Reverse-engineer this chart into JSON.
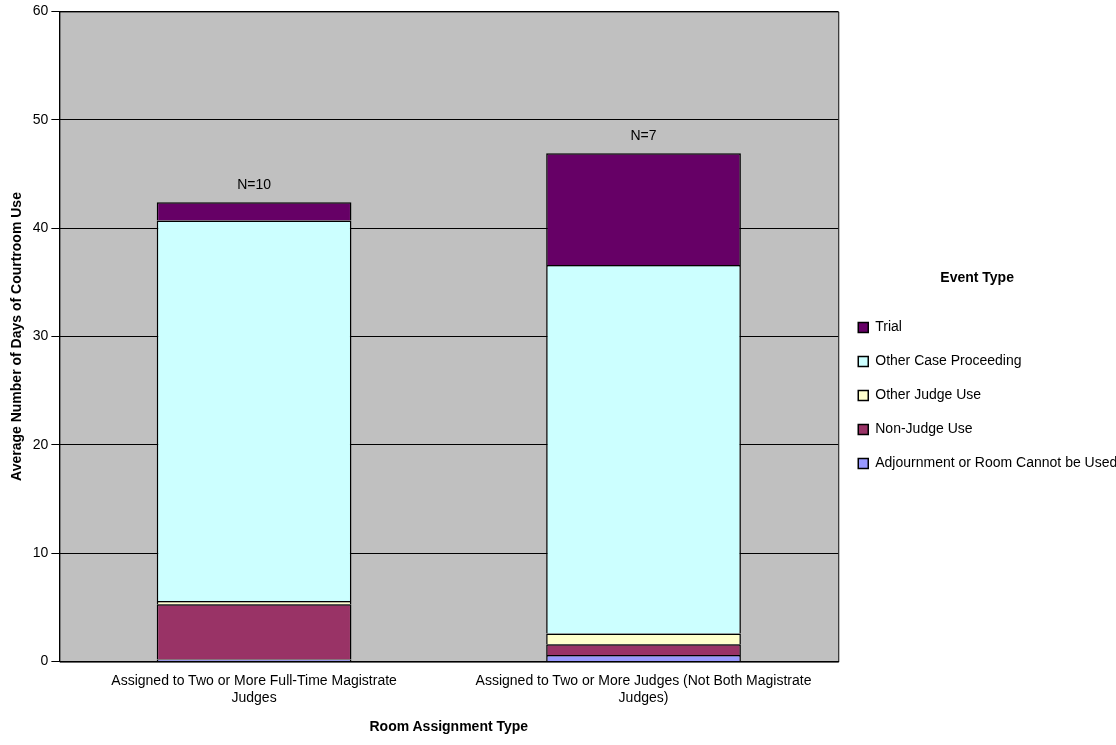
{
  "chart_data": {
    "type": "bar",
    "stacked": true,
    "xlabel": "Room Assignment Type",
    "ylabel": "Average Number of Days of Courtroom Use",
    "legend_title": "Event Type",
    "legend": "right",
    "categories": [
      "Assigned to Two or More Full-Time Magistrate Judges",
      "Assigned to Two or More Judges (Not Both Magistrate Judges)"
    ],
    "series": [
      {
        "name": "Adjournment or Room Cannot be Used",
        "color": "#9999ff",
        "values": [
          0.2,
          0.6
        ]
      },
      {
        "name": "Non-Judge Use",
        "color": "#993366",
        "values": [
          5.1,
          1.0
        ]
      },
      {
        "name": "Other Judge Use",
        "color": "#ffffcc",
        "values": [
          0.3,
          1.0
        ]
      },
      {
        "name": "Other Case Proceeding",
        "color": "#ccffff",
        "values": [
          35.1,
          34.0
        ]
      },
      {
        "name": "Trial",
        "color": "#660066",
        "values": [
          1.7,
          10.3
        ]
      }
    ],
    "ylim": [
      0,
      60
    ],
    "yticks": [
      0,
      10,
      20,
      30,
      40,
      50,
      60
    ],
    "grid": "y",
    "annotations": [
      {
        "text": "N=10",
        "x": "Assigned to Two or More Full-Time Magistrate Judges",
        "y": 42.4
      },
      {
        "text": "N=7",
        "x": "Assigned to Two or More Judges (Not Both Magistrate Judges)",
        "y": 46.9
      }
    ]
  }
}
